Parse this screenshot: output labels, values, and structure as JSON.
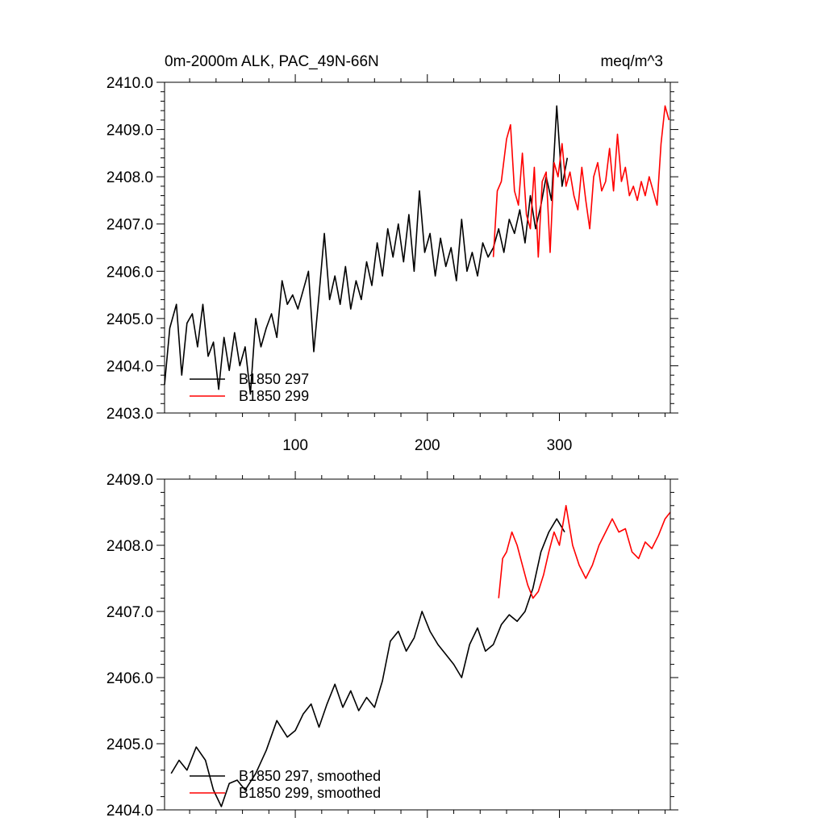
{
  "chart_data": [
    {
      "type": "line",
      "title_left": "0m-2000m ALK, PAC_49N-66N",
      "title_right": "meq/m^3",
      "xlim": [
        1,
        384
      ],
      "ylim": [
        2403.0,
        2410.0
      ],
      "x_ticks": [
        "100",
        "200",
        "300"
      ],
      "y_ticks": [
        "2403.0",
        "2404.0",
        "2405.0",
        "2406.0",
        "2407.0",
        "2408.0",
        "2409.0",
        "2410.0"
      ],
      "legend": [
        {
          "label": "B1850 297",
          "color": "#000000"
        },
        {
          "label": "B1850 299",
          "color": "#ff0000"
        }
      ],
      "series": [
        {
          "name": "B1850 297",
          "color": "#000000",
          "x": [
            1,
            5,
            10,
            14,
            18,
            22,
            26,
            30,
            34,
            38,
            42,
            46,
            50,
            54,
            58,
            62,
            66,
            70,
            74,
            78,
            82,
            86,
            90,
            94,
            98,
            102,
            106,
            110,
            114,
            118,
            122,
            126,
            130,
            134,
            138,
            142,
            146,
            150,
            154,
            158,
            162,
            166,
            170,
            174,
            178,
            182,
            186,
            190,
            194,
            198,
            202,
            206,
            210,
            214,
            218,
            222,
            226,
            230,
            234,
            238,
            242,
            246,
            250,
            254,
            258,
            262,
            266,
            270,
            274,
            278,
            282,
            286,
            290,
            294,
            298,
            302,
            306
          ],
          "values": [
            2403.6,
            2404.8,
            2405.3,
            2403.8,
            2404.9,
            2405.1,
            2404.4,
            2405.3,
            2404.2,
            2404.5,
            2403.5,
            2404.6,
            2403.9,
            2404.7,
            2404.0,
            2404.4,
            2403.4,
            2405.0,
            2404.4,
            2404.8,
            2405.1,
            2404.6,
            2405.8,
            2405.3,
            2405.5,
            2405.2,
            2405.6,
            2406.0,
            2404.3,
            2405.5,
            2406.8,
            2405.4,
            2405.9,
            2405.3,
            2406.1,
            2405.2,
            2405.8,
            2405.4,
            2406.2,
            2405.7,
            2406.6,
            2405.9,
            2406.9,
            2406.3,
            2407.0,
            2406.2,
            2407.2,
            2406.0,
            2407.7,
            2406.4,
            2406.8,
            2405.9,
            2406.7,
            2406.1,
            2406.5,
            2405.8,
            2407.1,
            2406.0,
            2406.4,
            2405.9,
            2406.6,
            2406.3,
            2406.5,
            2406.9,
            2406.4,
            2407.1,
            2406.8,
            2407.3,
            2406.6,
            2407.6,
            2406.9,
            2407.4,
            2408.0,
            2407.5,
            2409.5,
            2407.8,
            2408.4
          ]
        },
        {
          "name": "B1850 299",
          "color": "#ff0000",
          "x": [
            250,
            253,
            256,
            260,
            263,
            266,
            269,
            272,
            275,
            278,
            281,
            284,
            287,
            290,
            293,
            296,
            299,
            302,
            305,
            308,
            311,
            314,
            317,
            320,
            323,
            326,
            329,
            332,
            335,
            338,
            341,
            344,
            347,
            350,
            353,
            356,
            359,
            362,
            365,
            368,
            371,
            374,
            377,
            380,
            383
          ],
          "values": [
            2406.3,
            2407.7,
            2407.9,
            2408.8,
            2409.1,
            2407.7,
            2407.4,
            2408.5,
            2407.2,
            2406.9,
            2408.2,
            2406.3,
            2407.9,
            2408.1,
            2406.4,
            2408.3,
            2408.0,
            2408.7,
            2407.8,
            2408.1,
            2407.6,
            2407.3,
            2408.2,
            2407.5,
            2406.9,
            2408.0,
            2408.3,
            2407.7,
            2407.9,
            2408.6,
            2407.7,
            2408.9,
            2407.9,
            2408.2,
            2407.6,
            2407.8,
            2407.5,
            2407.9,
            2407.6,
            2408.0,
            2407.7,
            2407.4,
            2408.7,
            2409.5,
            2409.2
          ]
        }
      ]
    },
    {
      "type": "line",
      "xlim": [
        1,
        384
      ],
      "ylim": [
        2404.0,
        2409.0
      ],
      "y_ticks": [
        "2404.0",
        "2405.0",
        "2406.0",
        "2407.0",
        "2408.0",
        "2409.0"
      ],
      "legend": [
        {
          "label": "B1850 297, smoothed",
          "color": "#000000"
        },
        {
          "label": "B1850 299, smoothed",
          "color": "#ff0000"
        }
      ],
      "series": [
        {
          "name": "B1850 297, smoothed",
          "color": "#000000",
          "x": [
            6,
            12,
            18,
            25,
            32,
            38,
            44,
            50,
            56,
            62,
            70,
            78,
            86,
            94,
            100,
            106,
            112,
            118,
            124,
            130,
            136,
            142,
            148,
            154,
            160,
            166,
            172,
            178,
            184,
            190,
            196,
            202,
            208,
            214,
            220,
            226,
            232,
            238,
            244,
            250,
            256,
            262,
            268,
            274,
            280,
            286,
            292,
            298,
            304
          ],
          "values": [
            2404.55,
            2404.75,
            2404.6,
            2404.95,
            2404.75,
            2404.3,
            2404.05,
            2404.4,
            2404.45,
            2404.3,
            2404.55,
            2404.9,
            2405.35,
            2405.1,
            2405.2,
            2405.45,
            2405.6,
            2405.25,
            2405.6,
            2405.9,
            2405.55,
            2405.8,
            2405.5,
            2405.7,
            2405.55,
            2405.95,
            2406.55,
            2406.7,
            2406.4,
            2406.6,
            2407.0,
            2406.7,
            2406.5,
            2406.35,
            2406.2,
            2406.0,
            2406.5,
            2406.75,
            2406.4,
            2406.5,
            2406.8,
            2406.95,
            2406.85,
            2407.0,
            2407.35,
            2407.9,
            2408.2,
            2408.4,
            2408.2
          ]
        },
        {
          "name": "B1850 299, smoothed",
          "color": "#ff0000",
          "x": [
            254,
            257,
            260,
            264,
            268,
            272,
            276,
            280,
            284,
            288,
            292,
            296,
            300,
            305,
            310,
            315,
            320,
            325,
            330,
            335,
            340,
            345,
            350,
            355,
            360,
            365,
            370,
            375,
            380,
            384
          ],
          "values": [
            2407.2,
            2407.8,
            2407.9,
            2408.2,
            2408.0,
            2407.7,
            2407.4,
            2407.2,
            2407.3,
            2407.55,
            2407.9,
            2408.2,
            2408.0,
            2408.6,
            2408.0,
            2407.7,
            2407.5,
            2407.7,
            2408.0,
            2408.2,
            2408.4,
            2408.2,
            2408.25,
            2407.9,
            2407.8,
            2408.05,
            2407.95,
            2408.15,
            2408.4,
            2408.5
          ]
        }
      ]
    }
  ]
}
